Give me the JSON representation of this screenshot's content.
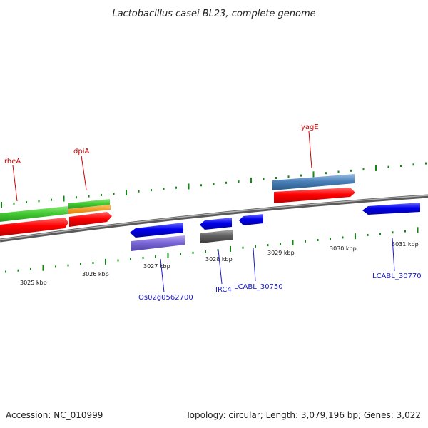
{
  "title": "Lactobacillus casei BL23, complete genome",
  "footer": {
    "accession": "Accession: NC_010999",
    "topology": "Topology: circular; Length: 3,079,196 bp; Genes: 3,022"
  },
  "scale_labels": [
    "3025 kbp",
    "3026 kbp",
    "3027 kbp",
    "3028 kbp",
    "3029 kbp",
    "3030 kbp",
    "3031 kbp"
  ],
  "forward_genes": [
    "rheA",
    "dpiA",
    "yagE"
  ],
  "reverse_genes": [
    "Os02g0562700",
    "IRC4",
    "LCABL_30750",
    "LCABL_30770"
  ],
  "colors": {
    "backbone": "#808080",
    "cds_red": "#ff0000",
    "gene_green": "#44cc33",
    "gene_orange": "#ff9900",
    "gene_blue": "#0000ee",
    "gene_purple": "#7b68d8",
    "gene_steelblue": "#4a80b8",
    "gene_gray": "#606060",
    "tick_green": "#118811",
    "label_red": "#cc0000",
    "label_blue": "#1a1acc"
  }
}
